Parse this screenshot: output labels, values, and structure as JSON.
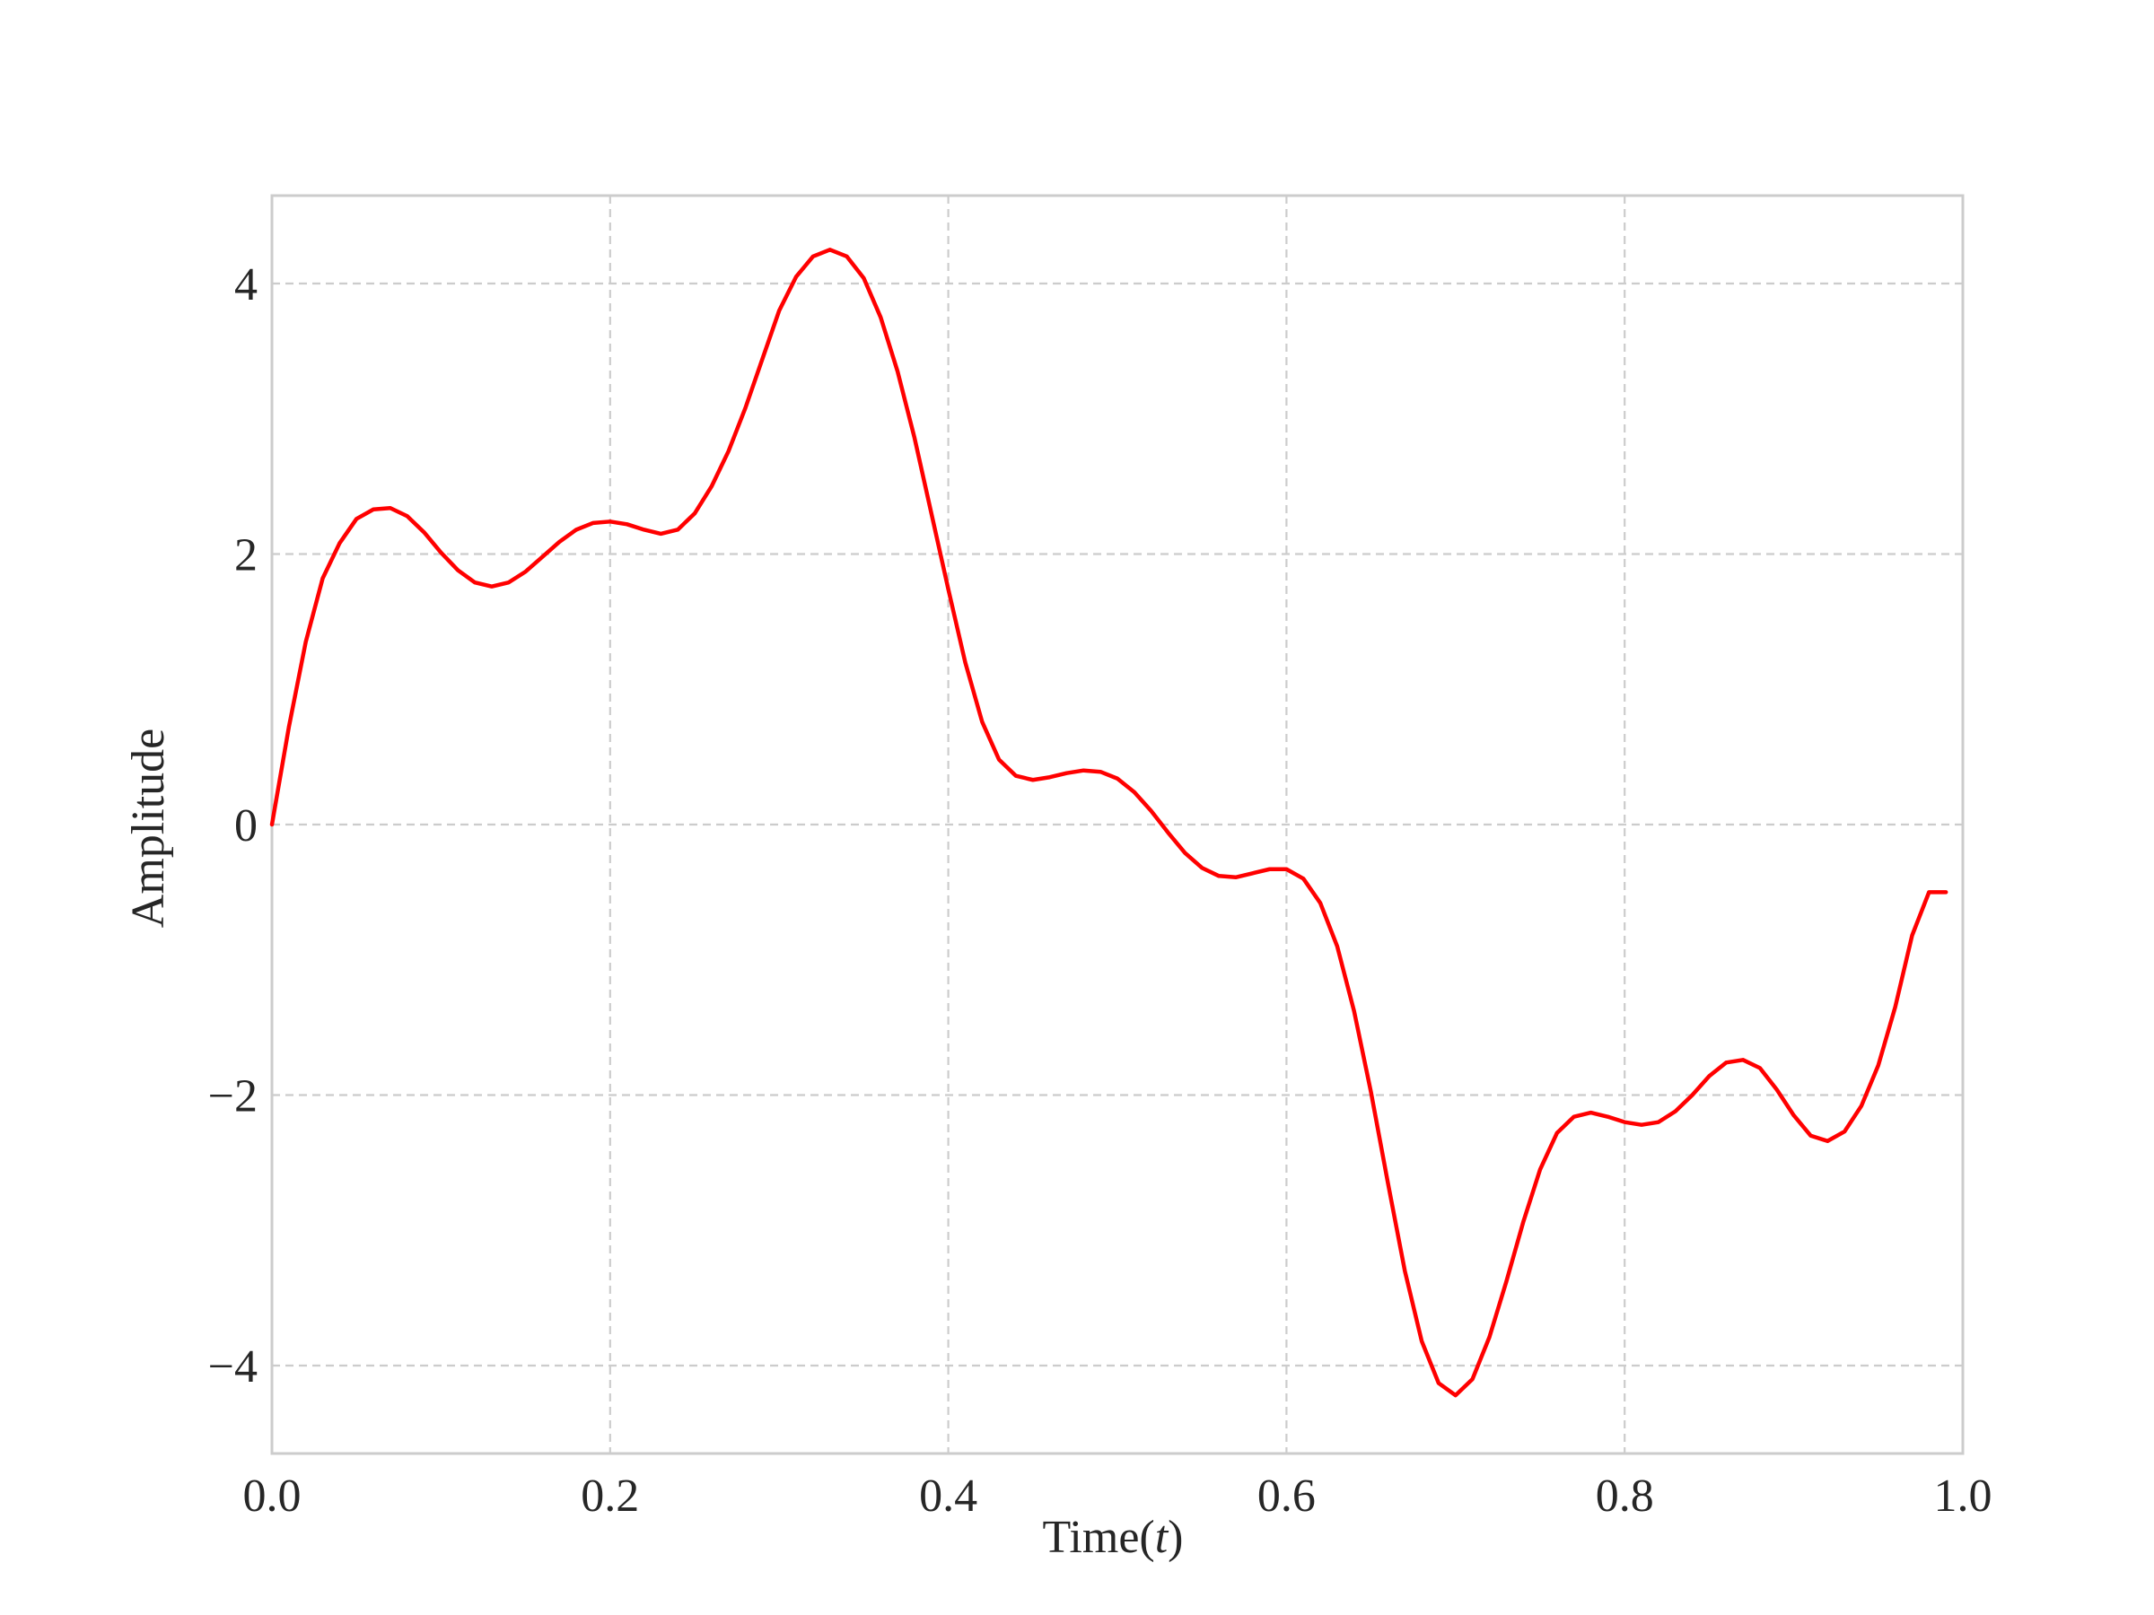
{
  "chart_data": {
    "type": "line",
    "title": "",
    "xlabel": "Time(",
    "xlabel_var": "t",
    "xlabel_close": ")",
    "ylabel": "Amplitude",
    "xlim": [
      0.0,
      1.0
    ],
    "ylim": [
      -4.65,
      4.65
    ],
    "xticks": [
      0.0,
      0.2,
      0.4,
      0.6,
      0.8,
      1.0
    ],
    "xtick_labels": [
      "0.0",
      "0.2",
      "0.4",
      "0.6",
      "0.8",
      "1.0"
    ],
    "yticks": [
      -4,
      -2,
      0,
      2,
      4
    ],
    "ytick_labels": [
      "−4",
      "−2",
      "0",
      "2",
      "4"
    ],
    "grid": true,
    "grid_style": "dashed",
    "legend": "none",
    "colors": {
      "line": "#ff0000",
      "grid": "#cccccc",
      "frame": "#cccccc",
      "text": "#262626"
    },
    "series": [
      {
        "x": [
          0.0,
          0.01,
          0.02,
          0.03,
          0.04,
          0.05,
          0.06,
          0.07,
          0.08,
          0.09,
          0.1,
          0.11,
          0.12,
          0.13,
          0.14,
          0.15,
          0.16,
          0.17,
          0.18,
          0.19,
          0.2,
          0.21,
          0.22,
          0.23,
          0.24,
          0.25,
          0.26,
          0.27,
          0.28,
          0.29,
          0.3,
          0.31,
          0.32,
          0.33,
          0.34,
          0.35,
          0.36,
          0.37,
          0.38,
          0.39,
          0.4,
          0.41,
          0.42,
          0.43,
          0.44,
          0.45,
          0.46,
          0.47,
          0.48,
          0.49,
          0.5,
          0.51,
          0.52,
          0.53,
          0.54,
          0.55,
          0.56,
          0.57,
          0.58,
          0.59,
          0.6,
          0.61,
          0.62,
          0.63,
          0.64,
          0.65,
          0.66,
          0.67,
          0.68,
          0.69,
          0.7,
          0.71,
          0.72,
          0.73,
          0.74,
          0.75,
          0.76,
          0.77,
          0.78,
          0.79,
          0.8,
          0.81,
          0.82,
          0.83,
          0.84,
          0.85,
          0.86,
          0.87,
          0.88,
          0.89,
          0.9,
          0.91,
          0.92,
          0.93,
          0.94,
          0.95,
          0.96,
          0.97,
          0.98,
          0.99
        ],
        "y": [
          0.0,
          0.72,
          1.35,
          1.82,
          2.08,
          2.26,
          2.33,
          2.34,
          2.28,
          2.16,
          2.01,
          1.88,
          1.79,
          1.76,
          1.79,
          1.87,
          1.98,
          2.09,
          2.18,
          2.23,
          2.24,
          2.22,
          2.18,
          2.15,
          2.18,
          2.3,
          2.5,
          2.76,
          3.08,
          3.44,
          3.8,
          4.05,
          4.2,
          4.25,
          4.2,
          4.04,
          3.75,
          3.35,
          2.86,
          2.3,
          1.74,
          1.2,
          0.76,
          0.48,
          0.36,
          0.33,
          0.35,
          0.38,
          0.4,
          0.39,
          0.34,
          0.24,
          0.1,
          -0.06,
          -0.21,
          -0.32,
          -0.38,
          -0.39,
          -0.36,
          -0.33,
          -0.33,
          -0.4,
          -0.58,
          -0.9,
          -1.38,
          -1.98,
          -2.65,
          -3.3,
          -3.82,
          -4.13,
          -4.22,
          -4.1,
          -3.79,
          -3.38,
          -2.94,
          -2.55,
          -2.28,
          -2.16,
          -2.13,
          -2.16,
          -2.2,
          -2.22,
          -2.2,
          -2.12,
          -2.0,
          -1.86,
          -1.76,
          -1.74,
          -1.8,
          -1.96,
          -2.15,
          -2.3,
          -2.34,
          -2.27,
          -2.08,
          -1.78,
          -1.35,
          -0.82,
          -0.5,
          -0.5
        ]
      }
    ]
  }
}
